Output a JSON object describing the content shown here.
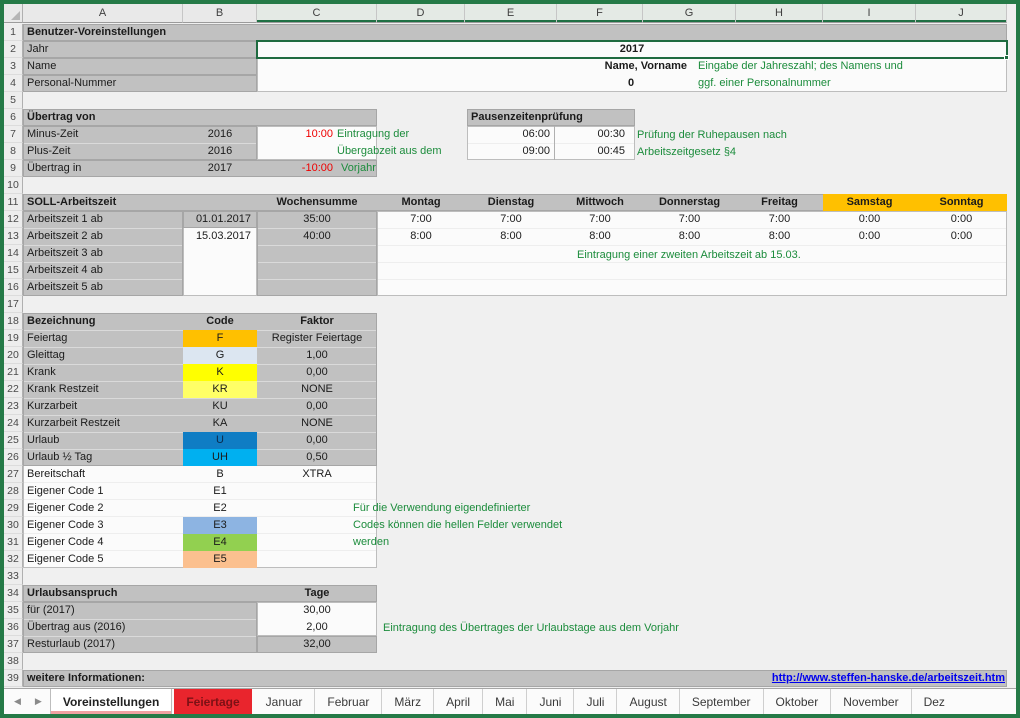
{
  "colors": {
    "frame_green": "#257a47",
    "annotation_green": "#1c8c3c",
    "negative_red": "#ee0000",
    "weekend_yellow": "#ffc000",
    "hyperlink_blue": "#0000ee",
    "feiertage_tab_red": "#e9252d"
  },
  "grid": {
    "columns": [
      "A",
      "B",
      "C",
      "D",
      "E",
      "F",
      "G",
      "H",
      "I",
      "J"
    ],
    "row_numbers": [
      "1",
      "2",
      "3",
      "4",
      "5",
      "6",
      "7",
      "8",
      "9",
      "10",
      "11",
      "12",
      "13",
      "14",
      "15",
      "16",
      "17",
      "18",
      "19",
      "20",
      "21",
      "22",
      "23",
      "24",
      "25",
      "26",
      "27",
      "28",
      "29",
      "30",
      "31",
      "32",
      "33",
      "34",
      "35",
      "36",
      "37",
      "38",
      "39"
    ]
  },
  "user": {
    "title": "Benutzer-Voreinstellungen",
    "year_label": "Jahr",
    "year_value": "2017",
    "name_label": "Name",
    "name_value": "Name, Vorname",
    "personnel_label": "Personal-Nummer",
    "personnel_value": "0",
    "note_line1": "Eingabe der Jahreszahl; des Namens und",
    "note_line2": "ggf. einer Personalnummer"
  },
  "carryover": {
    "title": "Übertrag von",
    "minus_label": "Minus-Zeit",
    "minus_year": "2016",
    "minus_value": "10:00",
    "plus_label": "Plus-Zeit",
    "plus_year": "2016",
    "plus_value": "",
    "into_label": "Übertrag in",
    "into_year": "2017",
    "into_value": "-10:00",
    "note_line1": "Eintragung der",
    "note_line2": "Übergabzeit aus dem",
    "note_line3": "Vorjahr"
  },
  "pause": {
    "title": "Pausenzeitenprüfung",
    "row1_threshold": "06:00",
    "row1_break": "00:30",
    "row2_threshold": "09:00",
    "row2_break": "00:45",
    "note_line1": "Prüfung der Ruhepausen nach",
    "note_line2": "Arbeitszeitgesetz §4"
  },
  "target": {
    "title": "SOLL-Arbeitszeit",
    "week_sum_label": "Wochensumme",
    "day_labels": [
      "Montag",
      "Dienstag",
      "Mittwoch",
      "Donnerstag",
      "Freitag",
      "Samstag",
      "Sonntag"
    ],
    "weekend_color": "#ffc000",
    "rows": [
      {
        "label": "Arbeitszeit 1 ab",
        "date": "01.01.2017",
        "sum": "35:00",
        "values": [
          "7:00",
          "7:00",
          "7:00",
          "7:00",
          "7:00",
          "0:00",
          "0:00"
        ]
      },
      {
        "label": "Arbeitszeit 2 ab",
        "date": "15.03.2017",
        "sum": "40:00",
        "values": [
          "8:00",
          "8:00",
          "8:00",
          "8:00",
          "8:00",
          "0:00",
          "0:00"
        ]
      },
      {
        "label": "Arbeitszeit 3 ab",
        "date": "",
        "sum": "",
        "values": [
          "",
          "",
          "",
          "",
          "",
          "",
          ""
        ]
      },
      {
        "label": "Arbeitszeit 4 ab",
        "date": "",
        "sum": "",
        "values": [
          "",
          "",
          "",
          "",
          "",
          "",
          ""
        ]
      },
      {
        "label": "Arbeitszeit 5 ab",
        "date": "",
        "sum": "",
        "values": [
          "",
          "",
          "",
          "",
          "",
          "",
          ""
        ]
      }
    ],
    "note": "Eintragung einer zweiten Arbeitszeit ab 15.03."
  },
  "codes": {
    "header_name": "Bezeichnung",
    "header_code": "Code",
    "header_factor": "Faktor",
    "rows": [
      {
        "label": "Feiertag",
        "code": "F",
        "factor": "Register Feiertage",
        "color": "#ffc000"
      },
      {
        "label": "Gleittag",
        "code": "G",
        "factor": "1,00",
        "color": "#dce6f1"
      },
      {
        "label": "Krank",
        "code": "K",
        "factor": "0,00",
        "color": "#ffff00"
      },
      {
        "label": "Krank Restzeit",
        "code": "KR",
        "factor": "NONE",
        "color": "#ffff66"
      },
      {
        "label": "Kurzarbeit",
        "code": "KU",
        "factor": "0,00",
        "color": ""
      },
      {
        "label": "Kurzarbeit Restzeit",
        "code": "KA",
        "factor": "NONE",
        "color": ""
      },
      {
        "label": "Urlaub",
        "code": "U",
        "factor": "0,00",
        "color": "#0f7dc4"
      },
      {
        "label": "Urlaub ½ Tag",
        "code": "UH",
        "factor": "0,50",
        "color": "#00b0f0"
      },
      {
        "label": "Bereitschaft",
        "code": "B",
        "factor": "XTRA",
        "color": ""
      },
      {
        "label": "Eigener Code 1",
        "code": "E1",
        "factor": "",
        "color": ""
      },
      {
        "label": "Eigener Code 2",
        "code": "E2",
        "factor": "",
        "color": ""
      },
      {
        "label": "Eigener Code 3",
        "code": "E3",
        "factor": "",
        "color": "#8db4e2"
      },
      {
        "label": "Eigener Code 4",
        "code": "E4",
        "factor": "",
        "color": "#92d050"
      },
      {
        "label": "Eigener Code 5",
        "code": "E5",
        "factor": "",
        "color": "#fbc08f"
      }
    ],
    "note_line1": "Für die Verwendung eigendefinierter",
    "note_line2": "Codes können die hellen Felder verwendet",
    "note_line3": "werden"
  },
  "vacation": {
    "title": "Urlaubsanspruch",
    "days_header": "Tage",
    "row1_label": "für (2017)",
    "row1_value": "30,00",
    "row2_label": "Übertrag aus (2016)",
    "row2_value": "2,00",
    "row3_label": "Resturlaub (2017)",
    "row3_value": "32,00",
    "note": "Eintragung des Übertrages der Urlaubstage aus dem Vorjahr"
  },
  "footer": {
    "label": "weitere Informationen:",
    "link": "http://www.steffen-hanske.de/arbeitszeit.htm"
  },
  "tabs": {
    "items": [
      {
        "label": "Voreinstellungen",
        "state": "active"
      },
      {
        "label": "Feiertage",
        "color": "#e9252d"
      },
      {
        "label": "Januar"
      },
      {
        "label": "Februar"
      },
      {
        "label": "März"
      },
      {
        "label": "April"
      },
      {
        "label": "Mai"
      },
      {
        "label": "Juni"
      },
      {
        "label": "Juli"
      },
      {
        "label": "August"
      },
      {
        "label": "September"
      },
      {
        "label": "Oktober"
      },
      {
        "label": "November"
      },
      {
        "label": "Dez"
      }
    ]
  }
}
